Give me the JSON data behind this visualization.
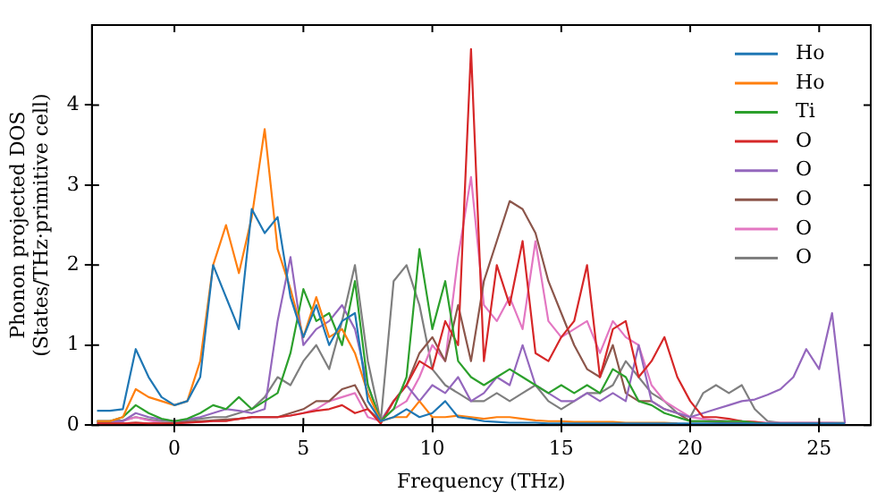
{
  "chart_data": {
    "type": "line",
    "xlabel": "Frequency (THz)",
    "ylabel": "Phonon projected DOS\n(States/THz·primitive cell)",
    "x": [
      -3,
      -2.5,
      -2,
      -1.5,
      -1,
      -0.5,
      0,
      0.5,
      1,
      1.5,
      2,
      2.5,
      3,
      3.5,
      4,
      4.5,
      5,
      5.5,
      6,
      6.5,
      7,
      7.5,
      8,
      8.5,
      9,
      9.5,
      10,
      10.5,
      11,
      11.5,
      12,
      12.5,
      13,
      13.5,
      14,
      14.5,
      15,
      15.5,
      16,
      16.5,
      17,
      17.5,
      18,
      18.5,
      19,
      19.5,
      20,
      20.5,
      21,
      21.5,
      22,
      22.5,
      23,
      23.5,
      24,
      24.5,
      25,
      25.5,
      26
    ],
    "xlim": [
      -3.2,
      27
    ],
    "xticks": [
      0,
      5,
      10,
      15,
      20,
      25
    ],
    "ylim": [
      0,
      5
    ],
    "yticks": [
      0,
      1,
      2,
      3,
      4
    ],
    "grid": false,
    "legend": "top right",
    "marker": "none",
    "line_style": "solid",
    "series": [
      {
        "name": "Ho",
        "color": "#1f77b4",
        "values": [
          0.18,
          0.18,
          0.2,
          0.95,
          0.6,
          0.35,
          0.25,
          0.3,
          0.6,
          2.0,
          1.6,
          1.2,
          2.7,
          2.4,
          2.6,
          1.6,
          1.1,
          1.5,
          1.0,
          1.3,
          1.4,
          0.3,
          0.05,
          0.1,
          0.2,
          0.1,
          0.15,
          0.3,
          0.1,
          0.08,
          0.05,
          0.04,
          0.03,
          0.03,
          0.03,
          0.02,
          0.02,
          0.02,
          0.02,
          0.02,
          0.02,
          0.02,
          0.02,
          0.02,
          0.02,
          0.02,
          0.02,
          0.02,
          0.02,
          0.02,
          0.02,
          0.02,
          0.02,
          0.02,
          0.02,
          0.02,
          0.02,
          0.02,
          0.02
        ]
      },
      {
        "name": "Ho",
        "color": "#ff7f0e",
        "values": [
          0.05,
          0.05,
          0.1,
          0.45,
          0.35,
          0.3,
          0.25,
          0.3,
          0.8,
          2.0,
          2.5,
          1.9,
          2.6,
          3.7,
          2.2,
          1.7,
          1.1,
          1.6,
          1.1,
          1.2,
          0.9,
          0.4,
          0.05,
          0.1,
          0.1,
          0.3,
          0.1,
          0.1,
          0.12,
          0.1,
          0.08,
          0.1,
          0.1,
          0.08,
          0.06,
          0.05,
          0.05,
          0.04,
          0.04,
          0.04,
          0.04,
          0.03,
          0.03,
          0.03,
          0.03,
          0.02,
          null,
          null,
          null,
          null,
          null,
          null,
          null,
          null,
          null,
          null,
          null,
          null,
          null
        ]
      },
      {
        "name": "Ti",
        "color": "#2ca02c",
        "values": [
          0.05,
          0.05,
          0.1,
          0.25,
          0.15,
          0.08,
          0.05,
          0.08,
          0.15,
          0.25,
          0.2,
          0.35,
          0.2,
          0.3,
          0.4,
          0.9,
          1.7,
          1.3,
          1.4,
          1.0,
          1.8,
          0.5,
          0.05,
          0.2,
          0.6,
          2.2,
          1.2,
          1.8,
          0.8,
          0.6,
          0.5,
          0.6,
          0.7,
          0.6,
          0.5,
          0.4,
          0.5,
          0.4,
          0.5,
          0.4,
          0.7,
          0.6,
          0.3,
          0.25,
          0.15,
          0.1,
          0.05,
          0.05,
          0.05,
          0.05,
          0.05,
          0.03,
          0.02,
          null,
          null,
          null,
          null,
          null,
          null
        ]
      },
      {
        "name": "O",
        "color": "#d62728",
        "values": [
          0.02,
          0.02,
          0.02,
          0.03,
          0.02,
          0.02,
          0.02,
          0.03,
          0.04,
          0.05,
          0.05,
          0.08,
          0.1,
          0.1,
          0.1,
          0.12,
          0.15,
          0.18,
          0.2,
          0.25,
          0.15,
          0.2,
          0.02,
          0.3,
          0.5,
          0.8,
          0.7,
          1.3,
          1.0,
          4.7,
          0.8,
          2.0,
          1.5,
          2.3,
          0.9,
          0.8,
          1.1,
          1.3,
          2.0,
          0.6,
          1.2,
          1.3,
          0.6,
          0.8,
          1.1,
          0.6,
          0.3,
          0.1,
          0.1,
          0.08,
          0.05,
          0.04,
          0.02,
          null,
          null,
          null,
          null,
          null,
          null
        ]
      },
      {
        "name": "O",
        "color": "#9467bd",
        "values": [
          0.05,
          0.05,
          0.05,
          0.15,
          0.1,
          0.07,
          0.05,
          0.07,
          0.1,
          0.15,
          0.2,
          0.18,
          0.15,
          0.2,
          1.3,
          2.1,
          1.0,
          1.2,
          1.3,
          1.5,
          1.2,
          0.5,
          0.05,
          0.3,
          0.5,
          0.3,
          0.5,
          0.4,
          0.6,
          0.3,
          0.4,
          0.6,
          0.5,
          1.0,
          0.5,
          0.4,
          0.3,
          0.3,
          0.4,
          0.3,
          0.4,
          0.3,
          1.0,
          0.3,
          0.2,
          0.15,
          0.1,
          0.15,
          0.2,
          0.25,
          0.3,
          0.32,
          0.38,
          0.45,
          0.6,
          0.95,
          0.7,
          1.4,
          0.02
        ]
      },
      {
        "name": "O",
        "color": "#8c564b",
        "values": [
          0.02,
          0.02,
          0.02,
          0.03,
          0.02,
          0.02,
          0.03,
          0.04,
          0.05,
          0.06,
          0.07,
          0.08,
          0.1,
          0.1,
          0.1,
          0.15,
          0.2,
          0.3,
          0.3,
          0.45,
          0.5,
          0.2,
          0.05,
          0.3,
          0.5,
          0.9,
          1.1,
          0.8,
          1.5,
          0.8,
          1.8,
          2.3,
          2.8,
          2.7,
          2.4,
          1.8,
          1.4,
          1.0,
          0.7,
          0.6,
          1.0,
          0.4,
          0.3,
          0.3,
          0.2,
          0.15,
          0.05,
          0.05,
          0.04,
          0.03,
          0.03,
          0.02,
          0.02,
          0.02,
          0.02,
          0.02,
          0.02,
          0.02,
          0.02
        ]
      },
      {
        "name": "O",
        "color": "#e377c2",
        "values": [
          0.02,
          0.03,
          0.05,
          0.1,
          0.06,
          0.03,
          0.02,
          0.03,
          0.04,
          0.05,
          0.06,
          0.08,
          0.1,
          0.1,
          0.1,
          0.12,
          0.15,
          0.2,
          0.3,
          0.35,
          0.4,
          0.1,
          0.05,
          0.2,
          0.3,
          0.6,
          1.0,
          0.8,
          2.1,
          3.1,
          1.5,
          1.3,
          1.6,
          1.2,
          2.3,
          1.3,
          1.1,
          1.2,
          1.3,
          0.9,
          1.3,
          1.1,
          1.0,
          0.5,
          0.3,
          0.2,
          0.1,
          0.08,
          0.06,
          0.05,
          0.05,
          0.04,
          0.03,
          0.03,
          0.03,
          0.03,
          0.03,
          0.03,
          0.02
        ]
      },
      {
        "name": "O",
        "color": "#7f7f7f",
        "values": [
          0.05,
          0.05,
          0.06,
          0.1,
          0.07,
          0.05,
          0.05,
          0.06,
          0.08,
          0.1,
          0.1,
          0.15,
          0.2,
          0.35,
          0.6,
          0.5,
          0.8,
          1.0,
          0.7,
          1.3,
          2.0,
          0.8,
          0.05,
          1.8,
          2.0,
          1.5,
          0.7,
          0.5,
          0.4,
          0.3,
          0.3,
          0.4,
          0.3,
          0.4,
          0.5,
          0.3,
          0.2,
          0.3,
          0.4,
          0.4,
          0.5,
          0.8,
          0.6,
          0.4,
          0.3,
          0.15,
          0.1,
          0.4,
          0.5,
          0.4,
          0.5,
          0.2,
          0.05,
          0.03,
          0.03,
          0.03,
          0.03,
          0.03,
          0.03
        ]
      }
    ]
  }
}
